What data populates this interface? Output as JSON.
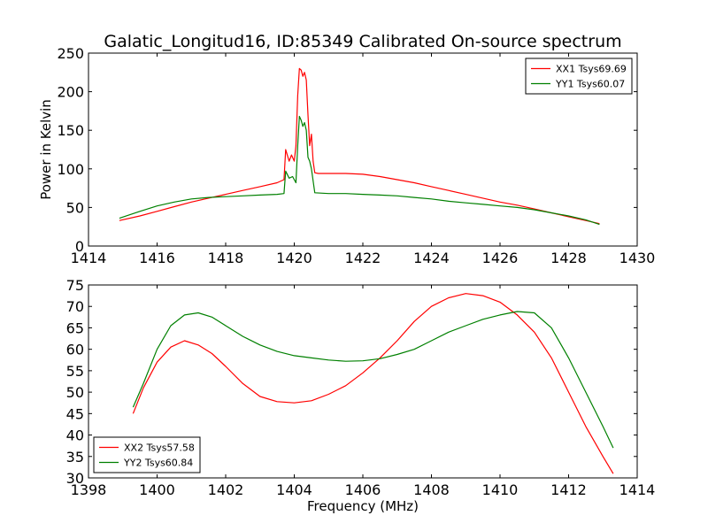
{
  "title": "Galatic_Longitud16, ID:85349 Calibrated On-source spectrum",
  "chart_data": [
    {
      "type": "line",
      "ylabel": "Power in Kelvin",
      "xlabel": "",
      "xlim": [
        1414,
        1430
      ],
      "ylim": [
        0,
        250
      ],
      "xticks": [
        "1414",
        "1416",
        "1418",
        "1420",
        "1422",
        "1424",
        "1426",
        "1428",
        "1430"
      ],
      "yticks": [
        "0",
        "50",
        "100",
        "150",
        "200",
        "250"
      ],
      "legend_position": "top-right",
      "series": [
        {
          "name": "XX1 Tsys69.69",
          "color": "#ff0000",
          "x": [
            1414.9,
            1415.5,
            1416.0,
            1416.5,
            1417.0,
            1417.5,
            1418.0,
            1418.5,
            1419.0,
            1419.5,
            1419.7,
            1419.75,
            1419.85,
            1419.92,
            1420.0,
            1420.05,
            1420.1,
            1420.15,
            1420.2,
            1420.25,
            1420.3,
            1420.35,
            1420.4,
            1420.45,
            1420.5,
            1420.55,
            1420.6,
            1420.7,
            1421.0,
            1421.5,
            1422.0,
            1422.5,
            1423.0,
            1423.5,
            1424.0,
            1424.5,
            1425.0,
            1425.5,
            1426.0,
            1426.5,
            1427.0,
            1427.5,
            1428.0,
            1428.5,
            1428.9
          ],
          "y": [
            33,
            39,
            45,
            51,
            57,
            62,
            67,
            72,
            77,
            82,
            86,
            125,
            110,
            118,
            110,
            130,
            195,
            230,
            228,
            220,
            225,
            215,
            170,
            130,
            145,
            110,
            95,
            94,
            94,
            94,
            93,
            90,
            86,
            82,
            77,
            72,
            67,
            62,
            57,
            53,
            48,
            43,
            38,
            33,
            29
          ]
        },
        {
          "name": "YY1 Tsys60.07",
          "color": "#008000",
          "x": [
            1414.9,
            1415.5,
            1416.0,
            1416.5,
            1417.0,
            1417.5,
            1418.0,
            1418.5,
            1419.0,
            1419.5,
            1419.7,
            1419.75,
            1419.85,
            1419.95,
            1420.05,
            1420.1,
            1420.15,
            1420.2,
            1420.25,
            1420.3,
            1420.35,
            1420.4,
            1420.45,
            1420.5,
            1420.6,
            1421.0,
            1421.5,
            1422.0,
            1422.5,
            1423.0,
            1423.5,
            1424.0,
            1424.5,
            1425.0,
            1425.5,
            1426.0,
            1426.5,
            1427.0,
            1427.5,
            1428.0,
            1428.5,
            1428.9
          ],
          "y": [
            36,
            45,
            52,
            57,
            61,
            63,
            64,
            65,
            66,
            67,
            68,
            97,
            88,
            90,
            82,
            130,
            168,
            163,
            155,
            160,
            150,
            115,
            110,
            100,
            69,
            68,
            68,
            67,
            66,
            65,
            63,
            61,
            58,
            56,
            54,
            52,
            50,
            47,
            43,
            39,
            34,
            28
          ]
        }
      ]
    },
    {
      "type": "line",
      "xlabel": "Frequency (MHz)",
      "ylabel": "",
      "xlim": [
        1398,
        1414
      ],
      "ylim": [
        30,
        75
      ],
      "xticks": [
        "1398",
        "1400",
        "1402",
        "1404",
        "1406",
        "1408",
        "1410",
        "1412",
        "1414"
      ],
      "yticks": [
        "30",
        "35",
        "40",
        "45",
        "50",
        "55",
        "60",
        "65",
        "70",
        "75"
      ],
      "legend_position": "bottom-left",
      "series": [
        {
          "name": "XX2 Tsys57.58",
          "color": "#ff0000",
          "x": [
            1399.3,
            1399.6,
            1400.0,
            1400.4,
            1400.8,
            1401.2,
            1401.6,
            1402.0,
            1402.5,
            1403.0,
            1403.5,
            1404.0,
            1404.5,
            1405.0,
            1405.5,
            1406.0,
            1406.5,
            1407.0,
            1407.5,
            1408.0,
            1408.5,
            1409.0,
            1409.5,
            1410.0,
            1410.5,
            1411.0,
            1411.5,
            1412.0,
            1412.5,
            1413.0,
            1413.3
          ],
          "y": [
            45,
            51,
            57,
            60.5,
            62,
            61,
            59,
            56,
            52,
            49,
            47.8,
            47.5,
            48,
            49.5,
            51.5,
            54.5,
            58,
            62,
            66.5,
            70,
            72,
            73,
            72.5,
            71,
            68,
            64,
            58,
            50,
            42,
            35,
            31
          ]
        },
        {
          "name": "YY2 Tsys60.84",
          "color": "#008000",
          "x": [
            1399.3,
            1399.6,
            1400.0,
            1400.4,
            1400.8,
            1401.2,
            1401.6,
            1402.0,
            1402.5,
            1403.0,
            1403.5,
            1404.0,
            1404.5,
            1405.0,
            1405.5,
            1406.0,
            1406.5,
            1407.0,
            1407.5,
            1408.0,
            1408.5,
            1409.0,
            1409.5,
            1410.0,
            1410.5,
            1411.0,
            1411.5,
            1412.0,
            1412.5,
            1413.0,
            1413.3
          ],
          "y": [
            46.5,
            52,
            60,
            65.5,
            68,
            68.5,
            67.5,
            65.5,
            63,
            61,
            59.5,
            58.5,
            58,
            57.5,
            57.2,
            57.3,
            57.8,
            58.8,
            60,
            62,
            64,
            65.5,
            67,
            68,
            68.8,
            68.5,
            65,
            58,
            50,
            42,
            37
          ]
        }
      ]
    }
  ]
}
